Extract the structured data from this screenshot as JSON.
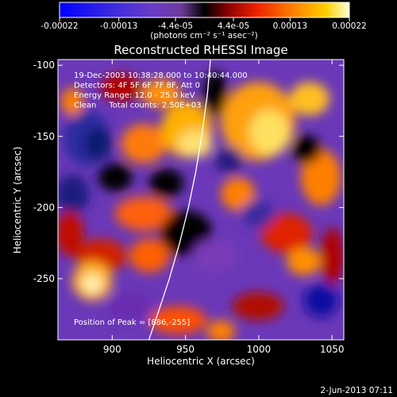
{
  "chart_data": {
    "type": "heatmap",
    "title": "Reconstructed RHESSI Image",
    "xlabel": "Heliocentric X (arcsec)",
    "ylabel": "Heliocentric Y (arcsec)",
    "xlim": [
      863,
      1058
    ],
    "ylim": [
      -293,
      -96
    ],
    "x_ticks": [
      900,
      950,
      1000,
      1050
    ],
    "y_ticks": [
      -100,
      -150,
      -200,
      -250
    ],
    "colorbar": {
      "colormap": "rhessi-hot",
      "range": [
        -0.00022,
        0.00022
      ],
      "tick_labels": [
        "-0.00022",
        "-0.00013",
        "-4.4e-05",
        "4.4e-05",
        "0.00013",
        "0.00022"
      ],
      "unit_label": "(photons cm⁻² s⁻¹ asec⁻²)"
    },
    "annotations": [
      "19-Dec-2003 10:38:28.000 to 10:40:44.000",
      "Detectors: 4F 5F 6F 7F 8F, Att 0",
      "Energy Range: 12.0 - 25.0 keV",
      "Clean     Total counts: 2.50E+03"
    ],
    "peak_label": "Position of Peak = [886,-255]",
    "peak_position": [
      886,
      -255
    ],
    "limb_curve_points": [
      [
        967,
        -96
      ],
      [
        965,
        -120
      ],
      [
        961,
        -150
      ],
      [
        957,
        -175
      ],
      [
        952,
        -200
      ],
      [
        946,
        -225
      ],
      [
        939,
        -250
      ],
      [
        931,
        -275
      ],
      [
        925,
        -293
      ]
    ]
  },
  "footer": {
    "date": "2-Jun-2013 07:11"
  },
  "colors": {
    "background": "#000000",
    "text": "#ffffff",
    "limb": "#ffffff"
  }
}
